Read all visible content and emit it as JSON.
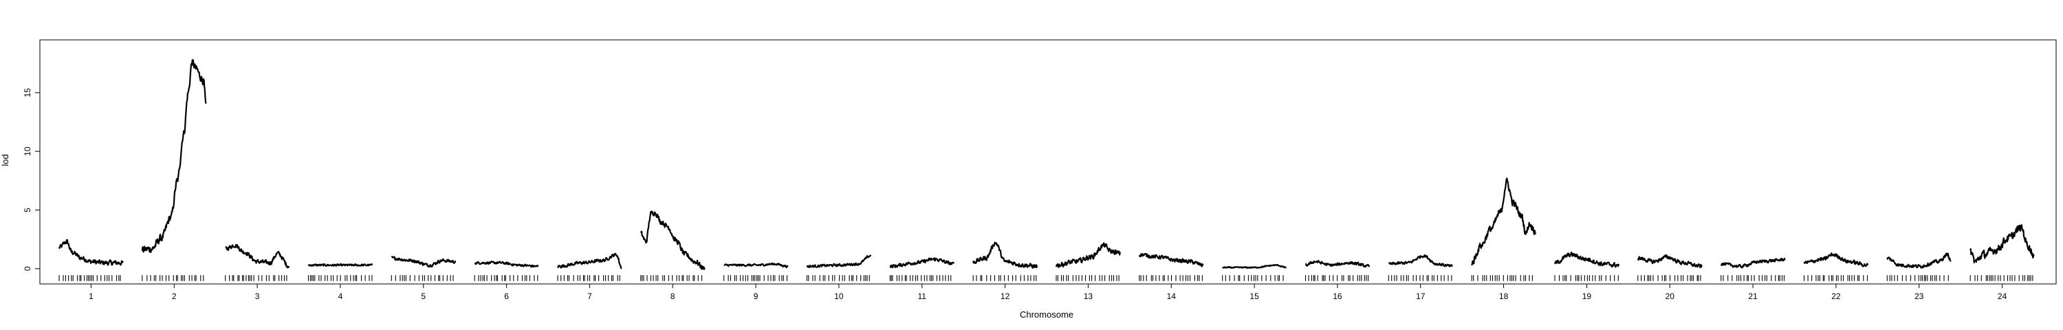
{
  "chart_data": {
    "type": "line",
    "title": "",
    "xlabel": "Chromosome",
    "ylabel": "lod",
    "ylim": [
      -1.3,
      19.5
    ],
    "yticks": [
      0,
      5,
      10,
      15
    ],
    "grid": false,
    "legend": "none",
    "colors": {
      "line": "#000000",
      "rug": "#000000",
      "frame": "#000000"
    },
    "chromosomes": [
      {
        "label": "1",
        "knots": [
          [
            0,
            1.8
          ],
          [
            0.12,
            2.3
          ],
          [
            0.2,
            1.4
          ],
          [
            0.35,
            0.9
          ],
          [
            0.5,
            0.6
          ],
          [
            0.7,
            0.5
          ],
          [
            1,
            0.5
          ]
        ],
        "noise": 0.28
      },
      {
        "label": "2",
        "knots": [
          [
            0,
            1.6
          ],
          [
            0.15,
            1.7
          ],
          [
            0.3,
            2.6
          ],
          [
            0.45,
            4.4
          ],
          [
            0.55,
            7.5
          ],
          [
            0.65,
            11.5
          ],
          [
            0.72,
            15.0
          ],
          [
            0.78,
            17.6
          ],
          [
            0.85,
            17.0
          ],
          [
            0.92,
            16.3
          ],
          [
            0.96,
            16.0
          ],
          [
            1,
            13.8
          ]
        ],
        "noise": 0.45
      },
      {
        "label": "3",
        "knots": [
          [
            0,
            1.7
          ],
          [
            0.15,
            2.0
          ],
          [
            0.3,
            1.4
          ],
          [
            0.5,
            0.6
          ],
          [
            0.7,
            0.5
          ],
          [
            0.82,
            1.3
          ],
          [
            1,
            0.2
          ]
        ],
        "noise": 0.25
      },
      {
        "label": "4",
        "knots": [
          [
            0,
            0.3
          ],
          [
            0.5,
            0.3
          ],
          [
            1,
            0.3
          ]
        ],
        "noise": 0.12
      },
      {
        "label": "5",
        "knots": [
          [
            0,
            0.9
          ],
          [
            0.3,
            0.7
          ],
          [
            0.6,
            0.3
          ],
          [
            0.8,
            0.7
          ],
          [
            1,
            0.6
          ]
        ],
        "noise": 0.18
      },
      {
        "label": "6",
        "knots": [
          [
            0,
            0.5
          ],
          [
            0.4,
            0.5
          ],
          [
            0.7,
            0.3
          ],
          [
            1,
            0.2
          ]
        ],
        "noise": 0.14
      },
      {
        "label": "7",
        "knots": [
          [
            0,
            0.2
          ],
          [
            0.4,
            0.5
          ],
          [
            0.7,
            0.7
          ],
          [
            0.92,
            1.2
          ],
          [
            1,
            0.1
          ]
        ],
        "noise": 0.18
      },
      {
        "label": "8",
        "knots": [
          [
            0,
            3.0
          ],
          [
            0.08,
            2.3
          ],
          [
            0.16,
            4.7
          ],
          [
            0.22,
            4.8
          ],
          [
            0.32,
            4.0
          ],
          [
            0.42,
            3.6
          ],
          [
            0.55,
            2.4
          ],
          [
            0.7,
            1.2
          ],
          [
            0.85,
            0.6
          ],
          [
            1,
            0.0
          ]
        ],
        "noise": 0.3
      },
      {
        "label": "9",
        "knots": [
          [
            0,
            0.3
          ],
          [
            0.5,
            0.3
          ],
          [
            0.8,
            0.4
          ],
          [
            1,
            0.2
          ]
        ],
        "noise": 0.12
      },
      {
        "label": "10",
        "knots": [
          [
            0,
            0.2
          ],
          [
            0.5,
            0.3
          ],
          [
            0.8,
            0.4
          ],
          [
            1,
            1.1
          ]
        ],
        "noise": 0.14
      },
      {
        "label": "11",
        "knots": [
          [
            0,
            0.2
          ],
          [
            0.4,
            0.5
          ],
          [
            0.7,
            0.8
          ],
          [
            1,
            0.4
          ]
        ],
        "noise": 0.2
      },
      {
        "label": "12",
        "knots": [
          [
            0,
            0.6
          ],
          [
            0.2,
            0.9
          ],
          [
            0.35,
            2.2
          ],
          [
            0.5,
            0.6
          ],
          [
            0.8,
            0.3
          ],
          [
            1,
            0.2
          ]
        ],
        "noise": 0.25
      },
      {
        "label": "13",
        "knots": [
          [
            0,
            0.3
          ],
          [
            0.3,
            0.6
          ],
          [
            0.55,
            1.0
          ],
          [
            0.75,
            2.0
          ],
          [
            0.85,
            1.5
          ],
          [
            1,
            1.3
          ]
        ],
        "noise": 0.28
      },
      {
        "label": "14",
        "knots": [
          [
            0,
            1.2
          ],
          [
            0.3,
            1.0
          ],
          [
            0.6,
            0.7
          ],
          [
            0.8,
            0.6
          ],
          [
            1,
            0.3
          ]
        ],
        "noise": 0.22
      },
      {
        "label": "15",
        "knots": [
          [
            0,
            0.1
          ],
          [
            0.5,
            0.1
          ],
          [
            0.85,
            0.3
          ],
          [
            1,
            0.1
          ]
        ],
        "noise": 0.07
      },
      {
        "label": "16",
        "knots": [
          [
            0,
            0.3
          ],
          [
            0.15,
            0.6
          ],
          [
            0.4,
            0.3
          ],
          [
            0.7,
            0.5
          ],
          [
            1,
            0.2
          ]
        ],
        "noise": 0.16
      },
      {
        "label": "17",
        "knots": [
          [
            0,
            0.4
          ],
          [
            0.3,
            0.5
          ],
          [
            0.55,
            1.1
          ],
          [
            0.75,
            0.4
          ],
          [
            1,
            0.2
          ]
        ],
        "noise": 0.16
      },
      {
        "label": "18",
        "knots": [
          [
            0,
            0.5
          ],
          [
            0.15,
            2.0
          ],
          [
            0.3,
            3.4
          ],
          [
            0.45,
            4.8
          ],
          [
            0.55,
            7.4
          ],
          [
            0.65,
            5.6
          ],
          [
            0.78,
            4.5
          ],
          [
            0.85,
            3.0
          ],
          [
            0.9,
            3.8
          ],
          [
            1,
            3.2
          ]
        ],
        "noise": 0.4
      },
      {
        "label": "19",
        "knots": [
          [
            0,
            0.5
          ],
          [
            0.25,
            1.2
          ],
          [
            0.5,
            0.8
          ],
          [
            0.75,
            0.4
          ],
          [
            1,
            0.3
          ]
        ],
        "noise": 0.25
      },
      {
        "label": "20",
        "knots": [
          [
            0,
            0.9
          ],
          [
            0.25,
            0.6
          ],
          [
            0.45,
            1.0
          ],
          [
            0.7,
            0.5
          ],
          [
            1,
            0.2
          ]
        ],
        "noise": 0.22
      },
      {
        "label": "21",
        "knots": [
          [
            0,
            0.4
          ],
          [
            0.3,
            0.2
          ],
          [
            0.6,
            0.6
          ],
          [
            0.85,
            0.7
          ],
          [
            1,
            0.8
          ]
        ],
        "noise": 0.18
      },
      {
        "label": "22",
        "knots": [
          [
            0,
            0.5
          ],
          [
            0.3,
            0.8
          ],
          [
            0.45,
            1.2
          ],
          [
            0.7,
            0.6
          ],
          [
            1,
            0.3
          ]
        ],
        "noise": 0.22
      },
      {
        "label": "23",
        "knots": [
          [
            0,
            0.9
          ],
          [
            0.2,
            0.3
          ],
          [
            0.5,
            0.2
          ],
          [
            0.8,
            0.6
          ],
          [
            0.95,
            1.2
          ],
          [
            1,
            0.6
          ]
        ],
        "noise": 0.2
      },
      {
        "label": "24",
        "knots": [
          [
            0,
            1.5
          ],
          [
            0.08,
            0.6
          ],
          [
            0.2,
            1.2
          ],
          [
            0.4,
            1.6
          ],
          [
            0.6,
            2.6
          ],
          [
            0.8,
            3.5
          ],
          [
            0.9,
            2.0
          ],
          [
            1,
            1.1
          ]
        ],
        "noise": 0.45
      }
    ]
  }
}
